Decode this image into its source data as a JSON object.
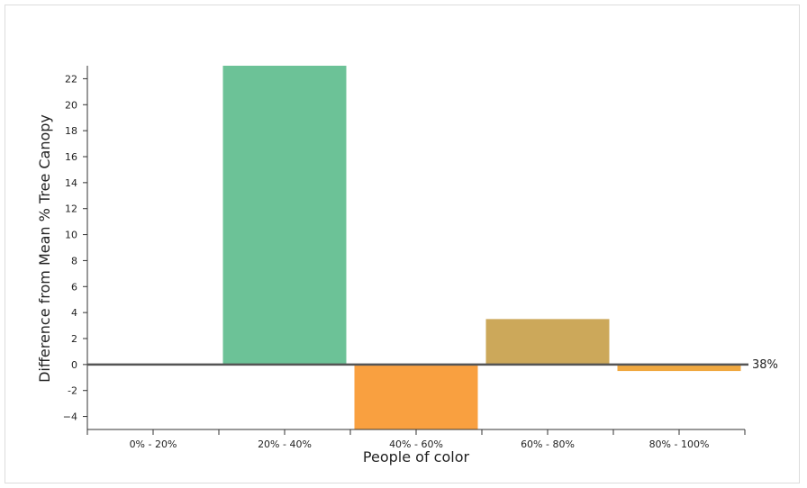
{
  "chart_data": {
    "type": "bar",
    "xlabel": "People of color",
    "ylabel": "Difference from Mean % Tree Canopy",
    "categories": [
      "0% - 20%",
      "20% - 40%",
      "40% - 60%",
      "60% - 80%",
      "80% - 100%"
    ],
    "values": [
      0,
      23,
      -5,
      3.5,
      -0.5
    ],
    "colors": [
      "#6cc297",
      "#6cc297",
      "#f9a040",
      "#cca85a",
      "#f0a840"
    ],
    "ylim": [
      -5,
      23
    ],
    "yticks": [
      -4,
      -2,
      0,
      2,
      4,
      6,
      8,
      10,
      12,
      14,
      16,
      18,
      20,
      22
    ],
    "ytick_labels": [
      "−4",
      "-2",
      "0",
      "2",
      "4",
      "6",
      "8",
      "10",
      "12",
      "14",
      "16",
      "18",
      "20",
      "22"
    ],
    "reference_line": {
      "value": 0,
      "label": "38%"
    },
    "grid": false,
    "legend": "none"
  }
}
